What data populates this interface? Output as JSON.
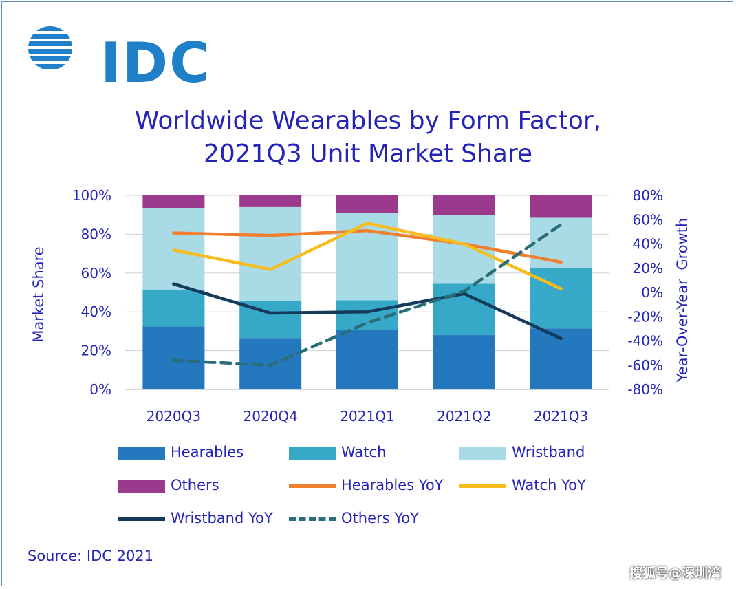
{
  "logo": {
    "text": "IDC",
    "icon": "idc-globe-icon",
    "color": "#1f7fc9"
  },
  "chart_data": {
    "type": "bar",
    "stacked": true,
    "title": "Worldwide Wearables by Form Factor,",
    "subtitle": "2021Q3 Unit Market Share",
    "ylabel": "Market Share",
    "ylabel_right": "Year-Over-Year Growth",
    "categories": [
      "2020Q3",
      "2020Q4",
      "2021Q1",
      "2021Q2",
      "2021Q3"
    ],
    "ylim": [
      0,
      100
    ],
    "yticks": [
      "0%",
      "20%",
      "40%",
      "60%",
      "80%",
      "100%"
    ],
    "ylim_right": [
      -80,
      80
    ],
    "yticks_right": [
      "-80%",
      "-60%",
      "-40%",
      "-20%",
      "0%",
      "20%",
      "40%",
      "60%",
      "80%"
    ],
    "grid": true,
    "legend_position": "bottom",
    "series": [
      {
        "name": "Hearables",
        "kind": "bar",
        "color": "#2478bd",
        "values": [
          32.5,
          26.5,
          30.5,
          28.0,
          31.5
        ]
      },
      {
        "name": "Watch",
        "kind": "bar",
        "color": "#36a9c9",
        "values": [
          19.0,
          19.0,
          15.5,
          26.5,
          31.0
        ]
      },
      {
        "name": "Wristband",
        "kind": "bar",
        "color": "#a8dbe6",
        "values": [
          42.0,
          48.5,
          45.0,
          35.5,
          26.0
        ]
      },
      {
        "name": "Others",
        "kind": "bar",
        "color": "#9b3a8c",
        "values": [
          6.5,
          6.0,
          9.0,
          10.0,
          11.5
        ]
      },
      {
        "name": "Hearables YoY",
        "kind": "line",
        "axis": "right",
        "color": "#f08030",
        "dash": false,
        "values": [
          49,
          47,
          51,
          40,
          25
        ]
      },
      {
        "name": "Watch YoY",
        "kind": "line",
        "axis": "right",
        "color": "#f7bc1e",
        "dash": false,
        "values": [
          35,
          19,
          57,
          40,
          3
        ]
      },
      {
        "name": "Wristband YoY",
        "kind": "line",
        "axis": "right",
        "color": "#143a5c",
        "dash": false,
        "values": [
          7,
          -17,
          -16,
          -1,
          -38
        ]
      },
      {
        "name": "Others YoY",
        "kind": "line",
        "axis": "right",
        "color": "#2a6d78",
        "dash": true,
        "values": [
          -56,
          -60,
          -25,
          1,
          56
        ]
      }
    ]
  },
  "source": "Source: IDC 2021",
  "watermark": "搜狐号@深圳湾"
}
